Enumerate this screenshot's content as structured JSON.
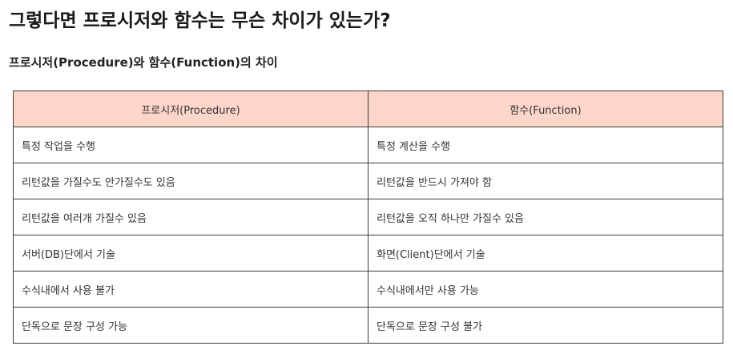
{
  "page": {
    "title": "그렇다면 프로시저와 함수는 무슨 차이가 있는가?",
    "subtitle": "프로시저(Procedure)와 함수(Function)의 차이"
  },
  "table": {
    "header_bg": "#fdd5c9",
    "border_color": "#3c3c3c",
    "headers": [
      "프로시저(Procedure)",
      "함수(Function)"
    ],
    "rows": [
      [
        "특정 작업을 수행",
        "특정 계산을 수행"
      ],
      [
        "리턴값을 가질수도 안가질수도 있음",
        "리턴값을 반드시 가져야 함"
      ],
      [
        "리턴값을 여러개 가질수 있음",
        "리턴값을 오직 하나만 가질수 있음"
      ],
      [
        "서버(DB)단에서 기술",
        "화면(Client)단에서 기술"
      ],
      [
        "수식내에서 사용 불가",
        "수식내에서만 사용 가능"
      ],
      [
        "단독으로 문장 구성 가능",
        "단독으로 문장 구성 불가"
      ]
    ]
  }
}
